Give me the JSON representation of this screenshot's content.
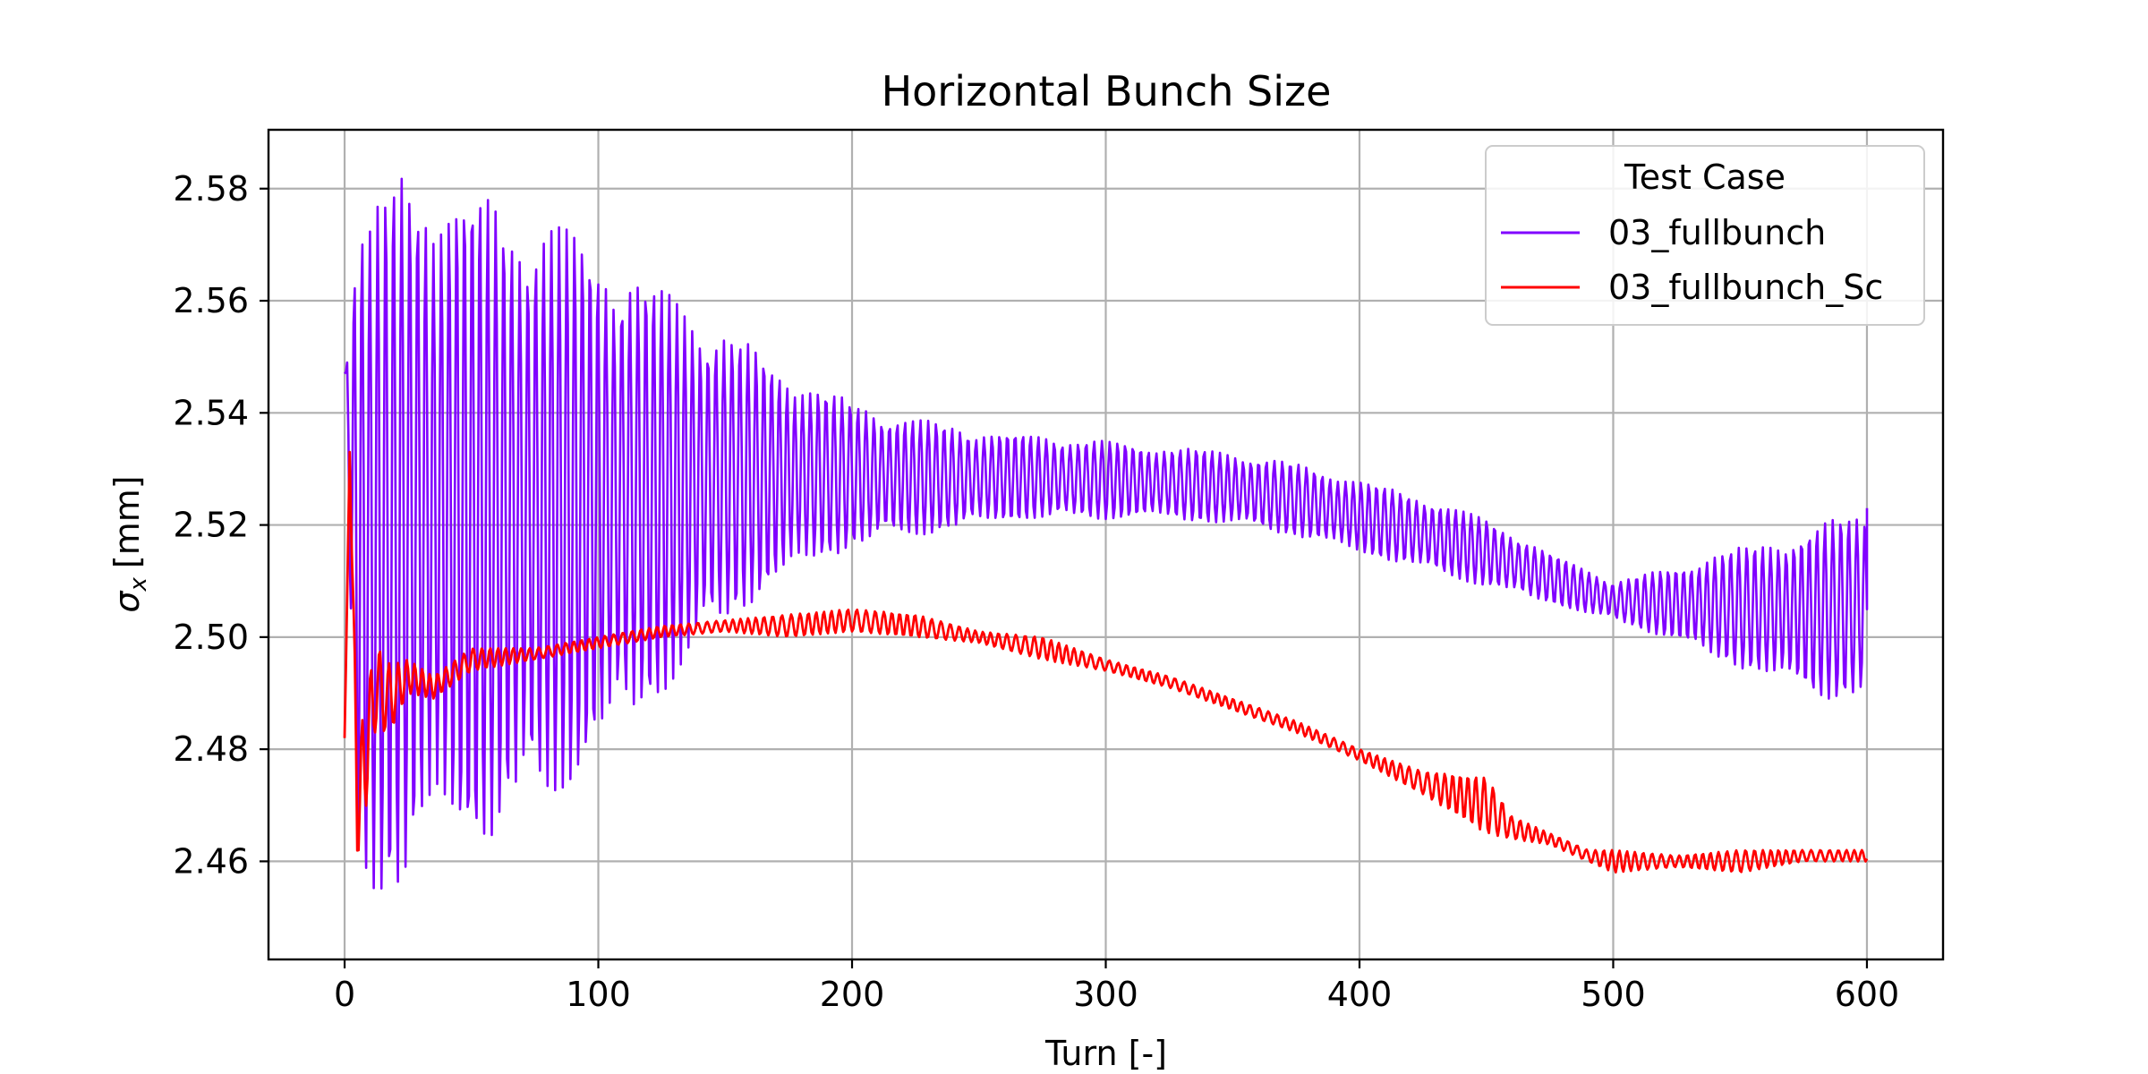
{
  "chart_data": {
    "type": "line",
    "title": "Horizontal Bunch Size",
    "xlabel": "Turn [-]",
    "ylabel_symbol": "σ",
    "ylabel_subscript": "x",
    "ylabel_unit": "[mm]",
    "xlim": [
      -30,
      630
    ],
    "ylim": [
      2.4425,
      2.5905
    ],
    "xticks": [
      0,
      100,
      200,
      300,
      400,
      500,
      600
    ],
    "xtick_labels": [
      "0",
      "100",
      "200",
      "300",
      "400",
      "500",
      "600"
    ],
    "yticks": [
      2.46,
      2.48,
      2.5,
      2.52,
      2.54,
      2.56,
      2.58
    ],
    "ytick_labels": [
      "2.46",
      "2.48",
      "2.50",
      "2.52",
      "2.54",
      "2.56",
      "2.58"
    ],
    "grid": true,
    "legend": {
      "title": "Test Case",
      "placement": "top-right"
    },
    "series": [
      {
        "name": "03_fullbunch",
        "color": "#8000ff",
        "x": [
          0,
          5,
          10,
          20,
          30,
          40,
          50,
          60,
          70,
          80,
          90,
          100,
          110,
          120,
          130,
          140,
          150,
          160,
          170,
          180,
          190,
          200,
          225,
          250,
          275,
          300,
          325,
          350,
          375,
          400,
          425,
          450,
          475,
          490,
          500,
          520,
          540,
          560,
          580,
          600
        ],
        "envelope_upper": [
          2.547,
          2.58,
          2.576,
          2.583,
          2.583,
          2.583,
          2.581,
          2.578,
          2.577,
          2.575,
          2.573,
          2.57,
          2.567,
          2.564,
          2.561,
          2.558,
          2.555,
          2.552,
          2.549,
          2.546,
          2.544,
          2.542,
          2.539,
          2.537,
          2.536,
          2.535,
          2.534,
          2.533,
          2.531,
          2.528,
          2.525,
          2.521,
          2.515,
          2.512,
          2.51,
          2.512,
          2.515,
          2.517,
          2.52,
          2.523
        ],
        "envelope_lower": [
          2.54,
          2.453,
          2.453,
          2.454,
          2.46,
          2.462,
          2.462,
          2.464,
          2.466,
          2.47,
          2.474,
          2.478,
          2.483,
          2.487,
          2.492,
          2.497,
          2.502,
          2.506,
          2.509,
          2.512,
          2.514,
          2.516,
          2.518,
          2.52,
          2.521,
          2.521,
          2.521,
          2.52,
          2.518,
          2.515,
          2.512,
          2.509,
          2.506,
          2.504,
          2.503,
          2.5,
          2.496,
          2.493,
          2.489,
          2.489
        ],
        "end_value": 2.523
      },
      {
        "name": "03_fullbunch_Sc",
        "color": "#ff0000",
        "x": [
          0,
          2,
          5,
          8,
          12,
          18,
          25,
          35,
          50,
          75,
          100,
          125,
          150,
          175,
          200,
          225,
          250,
          275,
          300,
          325,
          350,
          375,
          400,
          425,
          450,
          460,
          475,
          490,
          500,
          525,
          550,
          575,
          600
        ],
        "center": [
          2.482,
          2.533,
          2.47,
          2.478,
          2.491,
          2.489,
          2.493,
          2.491,
          2.496,
          2.497,
          2.499,
          2.501,
          2.502,
          2.502,
          2.503,
          2.502,
          2.5,
          2.498,
          2.495,
          2.492,
          2.488,
          2.484,
          2.479,
          2.474,
          2.47,
          2.466,
          2.464,
          2.461,
          2.46,
          2.46,
          2.46,
          2.461,
          2.461
        ],
        "amplitude": [
          0.0,
          0.0,
          0.01,
          0.01,
          0.008,
          0.006,
          0.003,
          0.002,
          0.002,
          0.001,
          0.001,
          0.001,
          0.001,
          0.002,
          0.002,
          0.002,
          0.001,
          0.002,
          0.001,
          0.001,
          0.001,
          0.001,
          0.001,
          0.002,
          0.005,
          0.002,
          0.001,
          0.001,
          0.002,
          0.001,
          0.002,
          0.001,
          0.001
        ]
      }
    ]
  }
}
